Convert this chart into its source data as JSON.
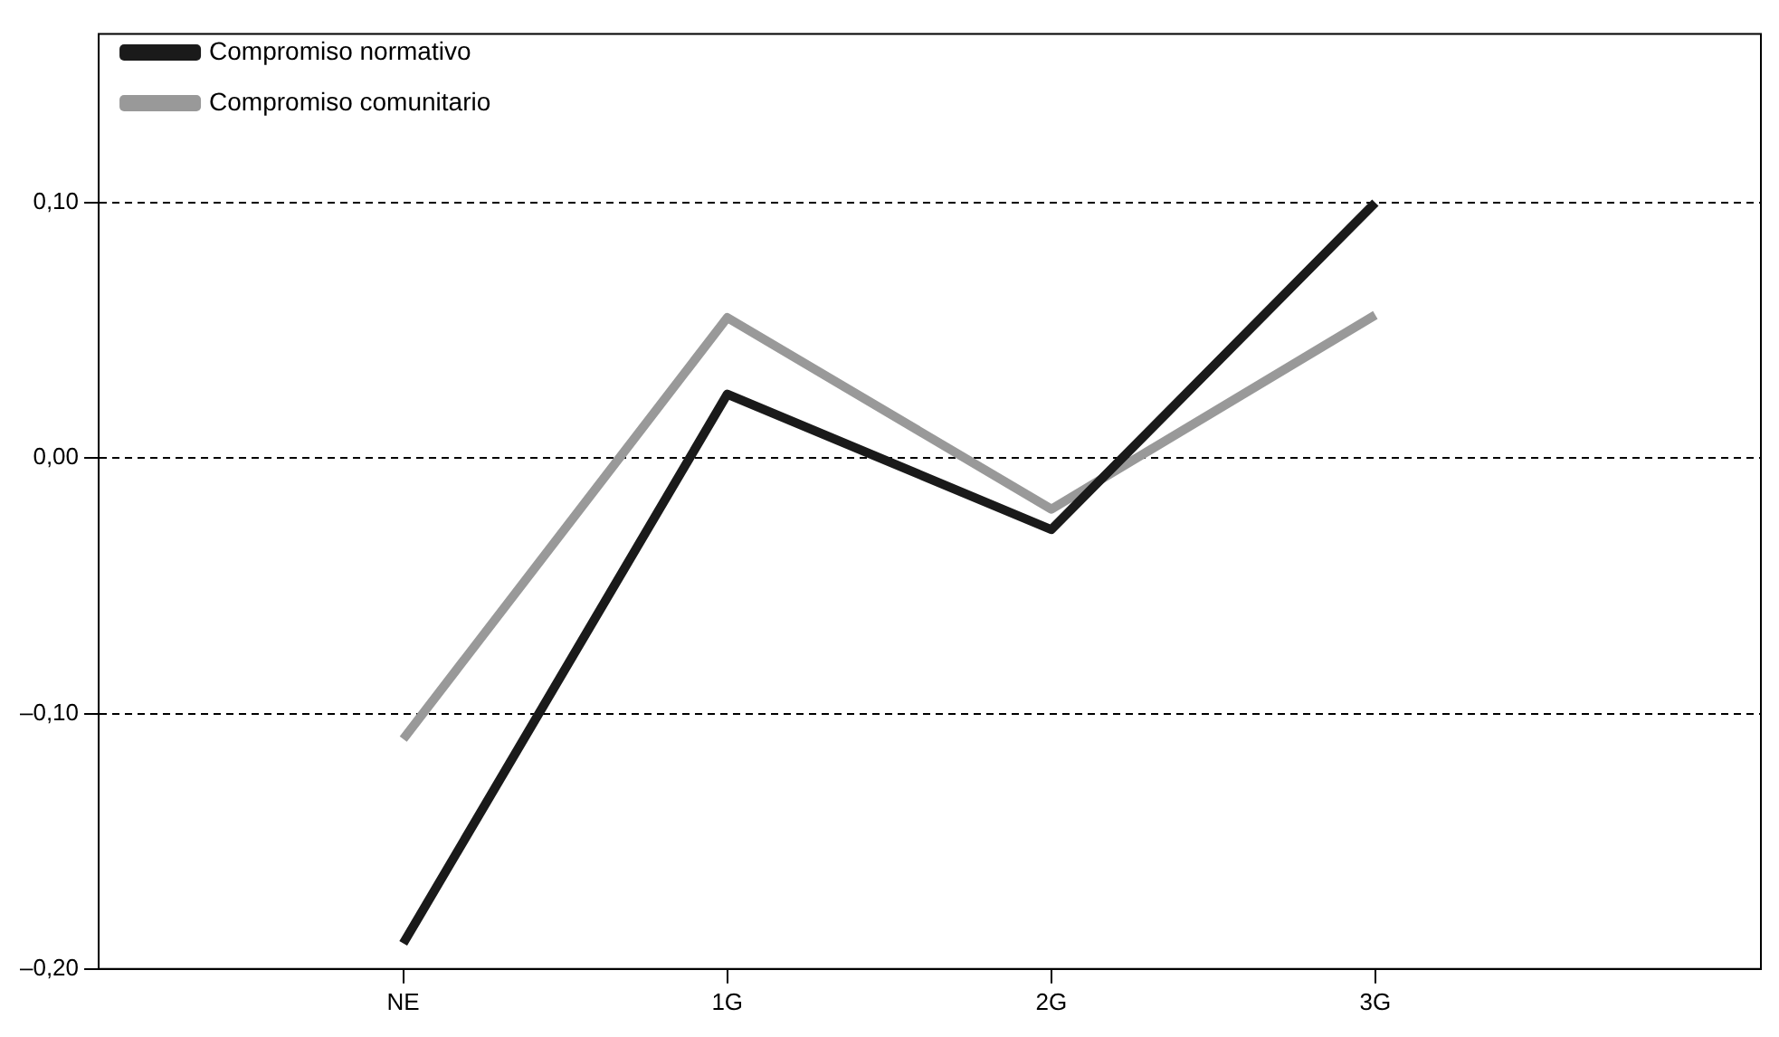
{
  "chart_data": {
    "type": "line",
    "categories": [
      "NE",
      "1G",
      "2G",
      "3G"
    ],
    "series": [
      {
        "name": "Compromiso normativo",
        "color": "#1a1a1a",
        "values": [
          -0.19,
          0.025,
          -0.028,
          0.1
        ]
      },
      {
        "name": "Compromiso comunitario",
        "color": "#999999",
        "values": [
          -0.11,
          0.055,
          -0.02,
          0.056
        ]
      }
    ],
    "ylim": [
      -0.2,
      0.166
    ],
    "yticks": [
      {
        "value": -0.2,
        "label": "–0,20"
      },
      {
        "value": -0.1,
        "label": "–0,10"
      },
      {
        "value": 0,
        "label": "0,00"
      },
      {
        "value": 0.1,
        "label": "0,10"
      }
    ],
    "grid": "y",
    "legend": "top left",
    "marker": "none",
    "line_style": "solid"
  }
}
